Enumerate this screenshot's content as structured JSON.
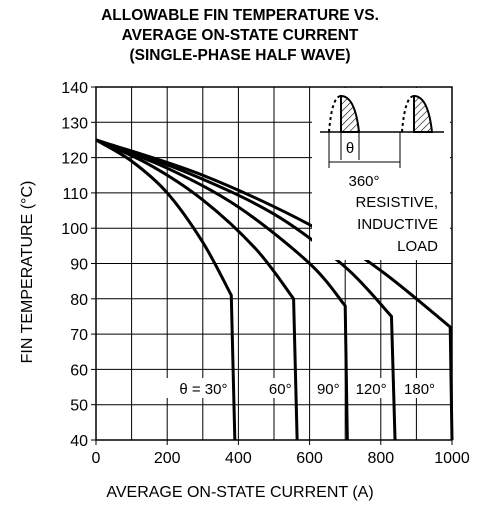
{
  "chart_data": {
    "type": "line",
    "title_lines": [
      "ALLOWABLE FIN TEMPERATURE VS.",
      "AVERAGE ON-STATE CURRENT",
      "(SINGLE-PHASE HALF WAVE)"
    ],
    "xlabel": "AVERAGE ON-STATE CURRENT  (A)",
    "ylabel": "FIN TEMPERATURE  (°C)",
    "xlim": [
      0,
      1000
    ],
    "ylim": [
      40,
      140
    ],
    "xticks": [
      0,
      200,
      400,
      600,
      800,
      1000
    ],
    "yticks": [
      40,
      50,
      60,
      70,
      80,
      90,
      100,
      110,
      120,
      130,
      140
    ],
    "grid": true,
    "series": [
      {
        "name": "θ = 30°",
        "x": [
          0,
          100,
          200,
          300,
          380,
          390
        ],
        "y": [
          125,
          119,
          110,
          96,
          81,
          40
        ]
      },
      {
        "name": "60°",
        "x": [
          0,
          150,
          300,
          450,
          555,
          565
        ],
        "y": [
          125,
          118,
          108,
          94,
          80,
          40
        ]
      },
      {
        "name": "90°",
        "x": [
          0,
          200,
          400,
          600,
          700,
          706
        ],
        "y": [
          125,
          117,
          106,
          90,
          78,
          40
        ]
      },
      {
        "name": "120°",
        "x": [
          0,
          250,
          500,
          700,
          830,
          840
        ],
        "y": [
          125,
          116,
          104,
          89,
          75,
          40
        ]
      },
      {
        "name": "180°",
        "x": [
          0,
          300,
          600,
          800,
          995,
          1000
        ],
        "y": [
          125,
          115,
          101,
          88,
          72,
          40
        ]
      }
    ],
    "inset": {
      "theta_label": "θ",
      "period_label": "360°",
      "load_lines": [
        "RESISTIVE,",
        "INDUCTIVE",
        "LOAD"
      ]
    }
  }
}
